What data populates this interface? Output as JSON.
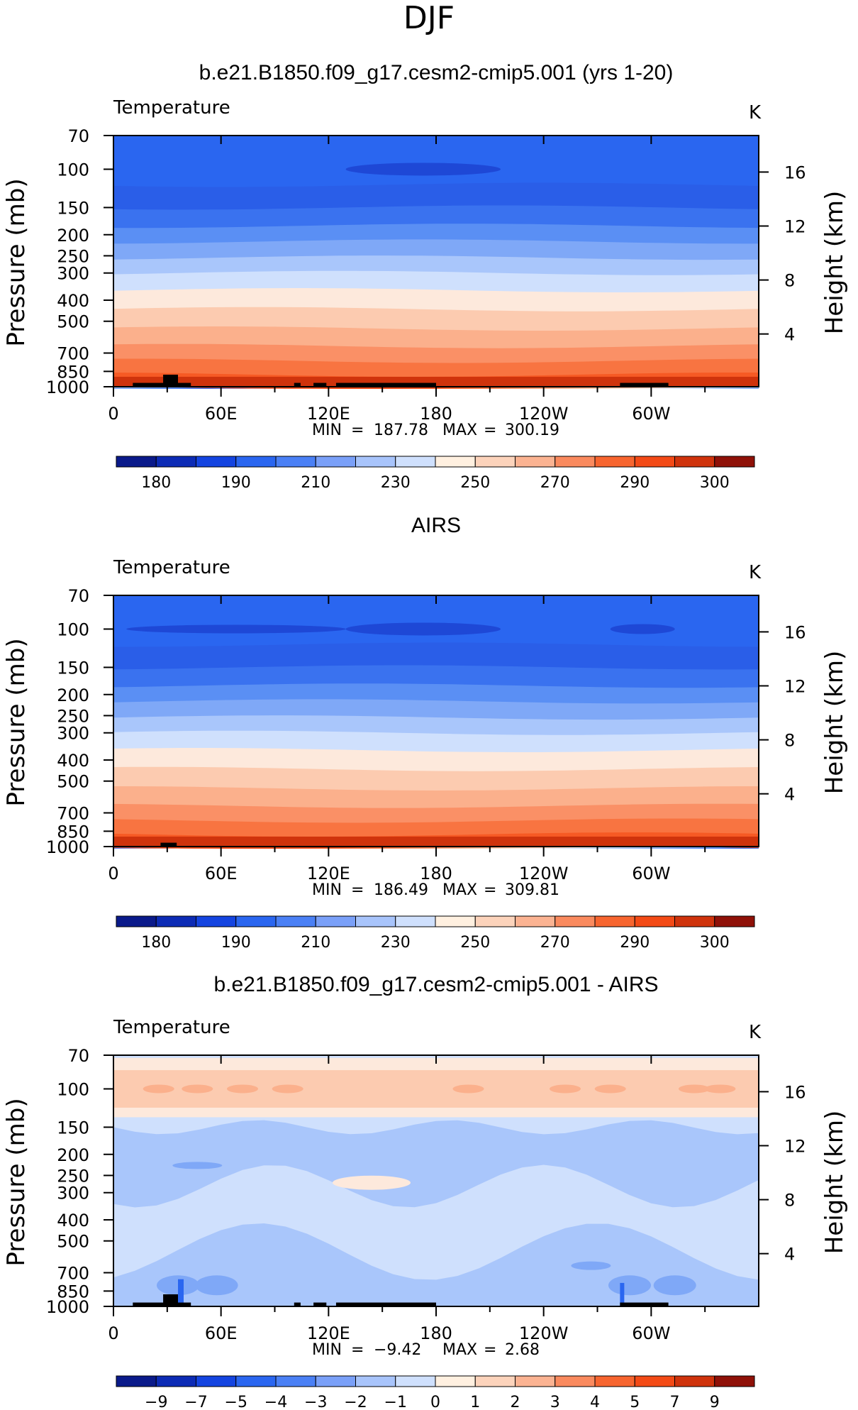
{
  "page_title": "DJF",
  "colors": {
    "abs_palette": [
      "#0a1a8a",
      "#0c2bb5",
      "#1444e0",
      "#2a66f0",
      "#4a80f5",
      "#7aa0f8",
      "#a8c4fb",
      "#cfe0fd",
      "#fff0e0",
      "#fcd3bb",
      "#fbb392",
      "#fa8a5e",
      "#f7652f",
      "#f34a16",
      "#cf330c",
      "#8f1108"
    ],
    "abs_labels": [
      "180",
      "190",
      "210",
      "230",
      "250",
      "270",
      "290",
      "300"
    ],
    "diff_palette": [
      "#0a1a8a",
      "#0c2bb5",
      "#1444e0",
      "#2a66f0",
      "#4a80f5",
      "#7aa0f8",
      "#a8c4fb",
      "#cfe0fd",
      "#fff0e0",
      "#fcd3bb",
      "#fbb392",
      "#fa8a5e",
      "#f7652f",
      "#f34a16",
      "#cf330c",
      "#8f1108"
    ],
    "diff_labels": [
      "−9",
      "−7",
      "−5",
      "−4",
      "−3",
      "−2",
      "−1",
      "0",
      "1",
      "2",
      "3",
      "4",
      "5",
      "7",
      "9"
    ]
  },
  "chart_data": [
    {
      "type": "heatmap",
      "title": "b.e21.B1850.f09_g17.cesm2-cmip5.001 (yrs 1-20)",
      "variable": "Temperature",
      "units": "K",
      "xlabel": "",
      "ylabel": "Pressure (mb)",
      "y2label": "Height (km)",
      "x_ticks": [
        "0",
        "60E",
        "120E",
        "180",
        "120W",
        "60W"
      ],
      "y_ticks": [
        "70",
        "100",
        "150",
        "200",
        "250",
        "300",
        "400",
        "500",
        "700",
        "850",
        "1000"
      ],
      "y2_ticks": [
        "16",
        "12",
        "8",
        "4"
      ],
      "stats": {
        "min_label": "MIN",
        "min": "187.78",
        "max_label": "MAX",
        "max": "300.19"
      },
      "colorbar_labels": [
        "180",
        "190",
        "210",
        "230",
        "250",
        "270",
        "290",
        "300"
      ],
      "field": "model"
    },
    {
      "type": "heatmap",
      "title": "AIRS",
      "variable": "Temperature",
      "units": "K",
      "xlabel": "",
      "ylabel": "Pressure (mb)",
      "y2label": "Height (km)",
      "x_ticks": [
        "0",
        "60E",
        "120E",
        "180",
        "120W",
        "60W"
      ],
      "y_ticks": [
        "70",
        "100",
        "150",
        "200",
        "250",
        "300",
        "400",
        "500",
        "700",
        "850",
        "1000"
      ],
      "y2_ticks": [
        "16",
        "12",
        "8",
        "4"
      ],
      "stats": {
        "min_label": "MIN",
        "min": "186.49",
        "max_label": "MAX",
        "max": "309.81"
      },
      "colorbar_labels": [
        "180",
        "190",
        "210",
        "230",
        "250",
        "270",
        "290",
        "300"
      ],
      "field": "obs"
    },
    {
      "type": "heatmap",
      "title": "b.e21.B1850.f09_g17.cesm2-cmip5.001 - AIRS",
      "variable": "Temperature",
      "units": "K",
      "xlabel": "",
      "ylabel": "Pressure (mb)",
      "y2label": "Height (km)",
      "x_ticks": [
        "0",
        "60E",
        "120E",
        "180",
        "120W",
        "60W"
      ],
      "y_ticks": [
        "70",
        "100",
        "150",
        "200",
        "250",
        "300",
        "400",
        "500",
        "700",
        "850",
        "1000"
      ],
      "y2_ticks": [
        "16",
        "12",
        "8",
        "4"
      ],
      "stats": {
        "min_label": "MIN",
        "min": "−9.42",
        "max_label": "MAX",
        "max": "2.68"
      },
      "colorbar_labels": [
        "−9",
        "−7",
        "−5",
        "−4",
        "−3",
        "−2",
        "−1",
        "0",
        "1",
        "2",
        "3",
        "4",
        "5",
        "7",
        "9"
      ],
      "field": "diff"
    }
  ]
}
